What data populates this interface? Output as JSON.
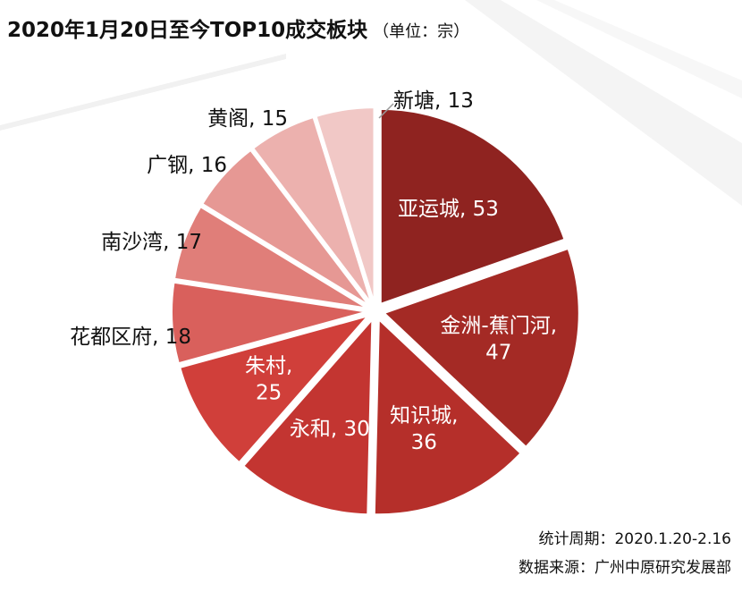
{
  "title": "2020年1月20日至今TOP10成交板块",
  "unit": "（单位：宗）",
  "footer": {
    "period": "统计周期：2020.1.20-2.16",
    "source": "数据来源：广州中原研究发展部"
  },
  "chart_data": {
    "type": "pie",
    "title": "2020年1月20日至今TOP10成交板块",
    "unit": "（单位：宗）",
    "slices": [
      {
        "label": "亚运城",
        "value": 53,
        "color": "#8f2320",
        "label_text": "亚运城, 53",
        "inside": true
      },
      {
        "label": "金洲-蕉门河",
        "value": 47,
        "color": "#a42a25",
        "label_text": "金洲-蕉门河, 47",
        "inside": true
      },
      {
        "label": "知识城",
        "value": 36,
        "color": "#b52f2a",
        "label_text": "知识城, 36",
        "inside": true
      },
      {
        "label": "永和",
        "value": 30,
        "color": "#c33531",
        "label_text": "永和, 30",
        "inside": true
      },
      {
        "label": "朱村",
        "value": 25,
        "color": "#d03f3a",
        "label_text": "朱村, 25",
        "inside": true
      },
      {
        "label": "花都区府",
        "value": 18,
        "color": "#d9605c",
        "label_text": "花都区府, 18",
        "inside": false
      },
      {
        "label": "南沙湾",
        "value": 17,
        "color": "#e07e79",
        "label_text": "南沙湾, 17",
        "inside": false
      },
      {
        "label": "广钢",
        "value": 16,
        "color": "#e69894",
        "label_text": "广钢, 16",
        "inside": false
      },
      {
        "label": "黄阁",
        "value": 15,
        "color": "#ecb1ae",
        "label_text": "黄阁, 15",
        "inside": false
      },
      {
        "label": "新塘",
        "value": 13,
        "color": "#f1c8c6",
        "label_text": "新塘, 13",
        "inside": false
      }
    ]
  }
}
